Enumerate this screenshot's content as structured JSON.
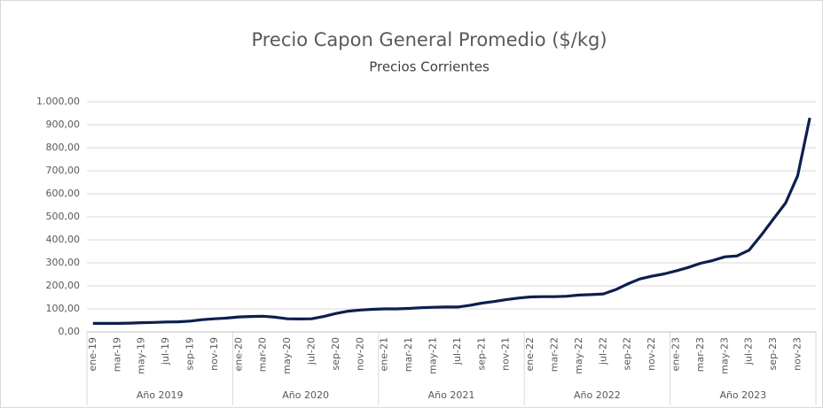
{
  "chart_data": {
    "type": "line",
    "title": "Precio Capon General Promedio ($/kg)",
    "subtitle": "Precios Corrientes",
    "categories": [
      "ene-19",
      null,
      "mar-19",
      null,
      "may-19",
      null,
      "jul-19",
      null,
      "sep-19",
      null,
      "nov-19",
      null,
      "ene-20",
      null,
      "mar-20",
      null,
      "may-20",
      null,
      "jul-20",
      null,
      "sep-20",
      null,
      "nov-20",
      null,
      "ene-21",
      null,
      "mar-21",
      null,
      "may-21",
      null,
      "jul-21",
      null,
      "sep-21",
      null,
      "nov-21",
      null,
      "ene-22",
      null,
      "mar-22",
      null,
      "may-22",
      null,
      "jul-22",
      null,
      "sep-22",
      null,
      "nov-22",
      null,
      "ene-23",
      null,
      "mar-23",
      null,
      "may-23",
      null,
      "jul-23",
      null,
      "sep-23",
      null,
      "nov-23",
      null
    ],
    "groups": [
      "Año 2019",
      "Año 2020",
      "Año 2021",
      "Año 2022",
      "Año 2023"
    ],
    "series": [
      {
        "name": "Precio Capon General Promedio",
        "color": "#0c1f4e",
        "values": [
          37,
          37,
          37,
          38,
          40,
          41,
          43,
          44,
          47,
          53,
          57,
          60,
          65,
          67,
          68,
          64,
          57,
          56,
          57,
          67,
          80,
          90,
          95,
          98,
          100,
          100,
          102,
          105,
          107,
          108,
          108,
          115,
          125,
          132,
          140,
          147,
          152,
          153,
          153,
          155,
          160,
          162,
          165,
          183,
          208,
          230,
          242,
          252,
          265,
          280,
          298,
          310,
          326,
          330,
          355,
          420,
          490,
          560,
          678,
          930
        ]
      }
    ],
    "ylim": [
      0,
      1000
    ],
    "yticks": [
      {
        "value": 0,
        "label": "0,00"
      },
      {
        "value": 100,
        "label": "100,00"
      },
      {
        "value": 200,
        "label": "200,00"
      },
      {
        "value": 300,
        "label": "300,00"
      },
      {
        "value": 400,
        "label": "400,00"
      },
      {
        "value": 500,
        "label": "500,00"
      },
      {
        "value": 600,
        "label": "600,00"
      },
      {
        "value": 700,
        "label": "700,00"
      },
      {
        "value": 800,
        "label": "800,00"
      },
      {
        "value": 900,
        "label": "900,00"
      },
      {
        "value": 1000,
        "label": "1.000,00"
      }
    ],
    "grid": true
  }
}
